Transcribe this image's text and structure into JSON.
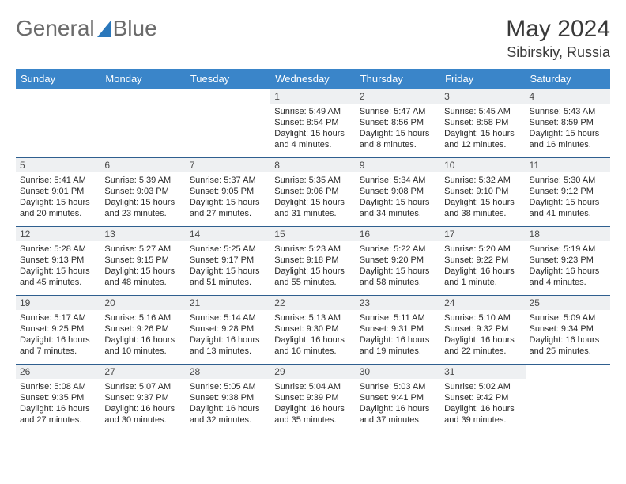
{
  "logo": {
    "text1": "General",
    "text2": "Blue"
  },
  "title": "May 2024",
  "location": "Sibirskiy, Russia",
  "colors": {
    "header_bg": "#3a85c9",
    "border": "#2f5f8f",
    "daynum_bg": "#eef0f2"
  },
  "weekdays": [
    "Sunday",
    "Monday",
    "Tuesday",
    "Wednesday",
    "Thursday",
    "Friday",
    "Saturday"
  ],
  "weeks": [
    [
      null,
      null,
      null,
      {
        "n": "1",
        "sr": "5:49 AM",
        "ss": "8:54 PM",
        "dl": "15 hours and 4 minutes."
      },
      {
        "n": "2",
        "sr": "5:47 AM",
        "ss": "8:56 PM",
        "dl": "15 hours and 8 minutes."
      },
      {
        "n": "3",
        "sr": "5:45 AM",
        "ss": "8:58 PM",
        "dl": "15 hours and 12 minutes."
      },
      {
        "n": "4",
        "sr": "5:43 AM",
        "ss": "8:59 PM",
        "dl": "15 hours and 16 minutes."
      }
    ],
    [
      {
        "n": "5",
        "sr": "5:41 AM",
        "ss": "9:01 PM",
        "dl": "15 hours and 20 minutes."
      },
      {
        "n": "6",
        "sr": "5:39 AM",
        "ss": "9:03 PM",
        "dl": "15 hours and 23 minutes."
      },
      {
        "n": "7",
        "sr": "5:37 AM",
        "ss": "9:05 PM",
        "dl": "15 hours and 27 minutes."
      },
      {
        "n": "8",
        "sr": "5:35 AM",
        "ss": "9:06 PM",
        "dl": "15 hours and 31 minutes."
      },
      {
        "n": "9",
        "sr": "5:34 AM",
        "ss": "9:08 PM",
        "dl": "15 hours and 34 minutes."
      },
      {
        "n": "10",
        "sr": "5:32 AM",
        "ss": "9:10 PM",
        "dl": "15 hours and 38 minutes."
      },
      {
        "n": "11",
        "sr": "5:30 AM",
        "ss": "9:12 PM",
        "dl": "15 hours and 41 minutes."
      }
    ],
    [
      {
        "n": "12",
        "sr": "5:28 AM",
        "ss": "9:13 PM",
        "dl": "15 hours and 45 minutes."
      },
      {
        "n": "13",
        "sr": "5:27 AM",
        "ss": "9:15 PM",
        "dl": "15 hours and 48 minutes."
      },
      {
        "n": "14",
        "sr": "5:25 AM",
        "ss": "9:17 PM",
        "dl": "15 hours and 51 minutes."
      },
      {
        "n": "15",
        "sr": "5:23 AM",
        "ss": "9:18 PM",
        "dl": "15 hours and 55 minutes."
      },
      {
        "n": "16",
        "sr": "5:22 AM",
        "ss": "9:20 PM",
        "dl": "15 hours and 58 minutes."
      },
      {
        "n": "17",
        "sr": "5:20 AM",
        "ss": "9:22 PM",
        "dl": "16 hours and 1 minute."
      },
      {
        "n": "18",
        "sr": "5:19 AM",
        "ss": "9:23 PM",
        "dl": "16 hours and 4 minutes."
      }
    ],
    [
      {
        "n": "19",
        "sr": "5:17 AM",
        "ss": "9:25 PM",
        "dl": "16 hours and 7 minutes."
      },
      {
        "n": "20",
        "sr": "5:16 AM",
        "ss": "9:26 PM",
        "dl": "16 hours and 10 minutes."
      },
      {
        "n": "21",
        "sr": "5:14 AM",
        "ss": "9:28 PM",
        "dl": "16 hours and 13 minutes."
      },
      {
        "n": "22",
        "sr": "5:13 AM",
        "ss": "9:30 PM",
        "dl": "16 hours and 16 minutes."
      },
      {
        "n": "23",
        "sr": "5:11 AM",
        "ss": "9:31 PM",
        "dl": "16 hours and 19 minutes."
      },
      {
        "n": "24",
        "sr": "5:10 AM",
        "ss": "9:32 PM",
        "dl": "16 hours and 22 minutes."
      },
      {
        "n": "25",
        "sr": "5:09 AM",
        "ss": "9:34 PM",
        "dl": "16 hours and 25 minutes."
      }
    ],
    [
      {
        "n": "26",
        "sr": "5:08 AM",
        "ss": "9:35 PM",
        "dl": "16 hours and 27 minutes."
      },
      {
        "n": "27",
        "sr": "5:07 AM",
        "ss": "9:37 PM",
        "dl": "16 hours and 30 minutes."
      },
      {
        "n": "28",
        "sr": "5:05 AM",
        "ss": "9:38 PM",
        "dl": "16 hours and 32 minutes."
      },
      {
        "n": "29",
        "sr": "5:04 AM",
        "ss": "9:39 PM",
        "dl": "16 hours and 35 minutes."
      },
      {
        "n": "30",
        "sr": "5:03 AM",
        "ss": "9:41 PM",
        "dl": "16 hours and 37 minutes."
      },
      {
        "n": "31",
        "sr": "5:02 AM",
        "ss": "9:42 PM",
        "dl": "16 hours and 39 minutes."
      },
      null
    ]
  ],
  "labels": {
    "sunrise": "Sunrise:",
    "sunset": "Sunset:",
    "daylight": "Daylight:"
  }
}
